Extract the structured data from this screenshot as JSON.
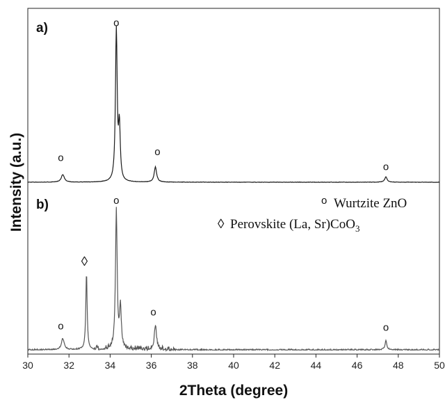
{
  "chart_data": {
    "type": "line",
    "xlabel": "2Theta (degree)",
    "ylabel": "Intensity (a.u.)",
    "xlim": [
      30,
      50
    ],
    "xticks": [
      30,
      32,
      34,
      36,
      38,
      40,
      42,
      44,
      46,
      48,
      50
    ],
    "grid": false,
    "legend_position": "right, top of panel b",
    "legend": [
      {
        "marker": "o",
        "label": "Wurtzite ZnO"
      },
      {
        "marker": "◊",
        "label_main": "Perovskite (La, Sr)CoO",
        "label_sub": "3"
      }
    ],
    "panels": [
      {
        "label": "a)",
        "color": "#1a1a1a",
        "peaks": [
          {
            "x": 31.7,
            "height": 0.05,
            "width": 0.09
          },
          {
            "x": 34.3,
            "height": 1.0,
            "width": 0.05
          },
          {
            "x": 34.45,
            "height": 0.35,
            "width": 0.05
          },
          {
            "x": 36.2,
            "height": 0.1,
            "width": 0.07
          },
          {
            "x": 47.4,
            "height": 0.035,
            "width": 0.07
          }
        ],
        "markers": [
          {
            "x": 31.6,
            "symbol": "o",
            "level": 0.14
          },
          {
            "x": 34.3,
            "symbol": "o",
            "level": 1.03
          },
          {
            "x": 36.3,
            "symbol": "o",
            "level": 0.18
          },
          {
            "x": 47.4,
            "symbol": "o",
            "level": 0.08
          }
        ]
      },
      {
        "label": "b)",
        "color": "#555555",
        "peaks": [
          {
            "x": 31.7,
            "height": 0.08,
            "width": 0.08
          },
          {
            "x": 32.85,
            "height": 0.56,
            "width": 0.04
          },
          {
            "x": 34.3,
            "height": 1.0,
            "width": 0.05
          },
          {
            "x": 34.5,
            "height": 0.3,
            "width": 0.05
          },
          {
            "x": 36.2,
            "height": 0.18,
            "width": 0.06
          },
          {
            "x": 47.4,
            "height": 0.07,
            "width": 0.05
          }
        ],
        "markers": [
          {
            "x": 31.6,
            "symbol": "o",
            "level": 0.15
          },
          {
            "x": 32.75,
            "symbol": "◊",
            "level": 0.61
          },
          {
            "x": 34.3,
            "symbol": "o",
            "level": 1.06
          },
          {
            "x": 36.1,
            "symbol": "o",
            "level": 0.25
          },
          {
            "x": 47.4,
            "symbol": "o",
            "level": 0.14
          }
        ]
      }
    ]
  }
}
